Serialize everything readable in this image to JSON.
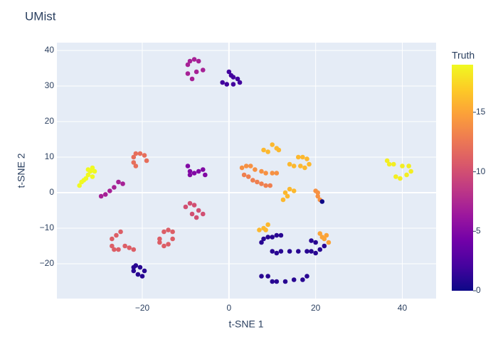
{
  "chart_data": {
    "type": "scatter",
    "title": "UMist",
    "x_label": "t-SNE 1",
    "y_label": "t-SNE 2",
    "colorbar_title": "Truth",
    "colorscale": [
      "#0d0887",
      "#46039f",
      "#7201a8",
      "#9c179e",
      "#bd3786",
      "#d8576b",
      "#ed7953",
      "#fb9f3a",
      "#fdca26",
      "#f0f921"
    ],
    "clim": [
      0,
      19
    ],
    "cticks": [
      0,
      5,
      10,
      15
    ],
    "xlim": [
      -39.7,
      47.8
    ],
    "ylim": [
      -29.8,
      42.2
    ],
    "xticks": [
      {
        "value": -20,
        "label": "−20"
      },
      0,
      20,
      40
    ],
    "yticks": [
      {
        "value": -20,
        "label": "−20"
      },
      {
        "value": -10,
        "label": "−10"
      },
      0,
      10,
      20,
      30,
      40
    ],
    "grid": true,
    "x": [
      -34.5,
      -34,
      -33.5,
      -33,
      -32.5,
      -32,
      -31.5,
      -31,
      -32.5,
      -31.5,
      -29.5,
      -28.5,
      -27.5,
      -26.5,
      -25.5,
      -24.5,
      -22,
      -21.5,
      -20.5,
      -19.5,
      -19,
      -22,
      -21.5,
      -27,
      -26,
      -25,
      -27,
      -26.5,
      -25.5,
      -24,
      -23,
      -22,
      -22,
      -21,
      -20,
      -19.5,
      -20.5,
      -21.5,
      -22,
      -16,
      -15,
      -14,
      -13,
      -13,
      -14,
      -15,
      -16,
      -10,
      -9,
      -8,
      -7,
      -6,
      -7.5,
      -8.5,
      -9.5,
      -9,
      -8,
      -7,
      -6,
      -5.5,
      -9,
      -9.5,
      -9,
      -8,
      -7,
      -6,
      -9.5,
      -8.5,
      -7.5,
      0,
      0.5,
      1,
      2,
      2.5,
      -1.5,
      -0.5,
      1,
      3,
      4,
      5,
      6,
      7.5,
      8.5,
      10,
      11,
      3.5,
      4.5,
      5.5,
      6.5,
      7.5,
      8.5,
      9.5,
      8,
      9,
      10,
      11,
      11.5,
      14,
      15,
      16,
      17,
      18,
      18.5,
      17.5,
      16.5,
      12.5,
      13,
      14,
      15,
      13.5,
      20,
      20.5,
      21,
      20.5,
      21,
      21.5,
      22,
      23,
      22.5,
      7,
      8,
      9,
      8.5,
      7.5,
      8,
      9,
      10,
      11,
      12,
      10,
      11,
      12,
      14,
      16,
      18,
      19,
      20,
      21,
      22,
      20,
      19,
      7.5,
      9,
      10,
      11,
      13,
      15,
      17,
      18,
      36.5,
      38,
      40,
      41.5,
      42,
      41,
      39.5,
      38.5,
      37,
      21.5
    ],
    "values": [
      2,
      3,
      3.5,
      4,
      5,
      6,
      7,
      6,
      6.5,
      4.5,
      -1,
      -0.5,
      0.5,
      1.5,
      3,
      2.5,
      10,
      11,
      11,
      10.5,
      9,
      8.5,
      7.5,
      -13,
      -12,
      -11,
      -15,
      -16,
      -16,
      -15,
      -15.5,
      -16,
      -22,
      -23,
      -23.5,
      -22,
      -21,
      -20.5,
      -21,
      -13,
      -11,
      -10.5,
      -11,
      -13,
      -14.5,
      -15,
      -14,
      -4,
      -3,
      -3.5,
      -5,
      -6,
      -7,
      -6,
      7.5,
      6,
      5.5,
      6,
      6.5,
      5,
      5,
      36,
      37,
      37.5,
      37,
      34.5,
      33.5,
      32,
      34,
      34,
      33,
      32.5,
      32,
      31,
      31,
      30.5,
      30.5,
      7,
      7.5,
      7.5,
      6.5,
      6,
      5.5,
      5.5,
      5.5,
      5,
      4.5,
      3.5,
      3,
      2.5,
      2,
      2,
      12,
      11.5,
      13.5,
      12.5,
      12,
      8,
      7.5,
      10,
      10,
      9.5,
      8,
      7,
      7.5,
      -2,
      0,
      1,
      0.5,
      -1,
      0.5,
      -1,
      -2,
      0,
      -11.5,
      -12.5,
      -13,
      -14,
      -12,
      -10.5,
      -10,
      -9,
      -10.5,
      -14,
      -13,
      -12.5,
      -12.5,
      -12,
      -12,
      -16.5,
      -17,
      -16.5,
      -16.5,
      -16.5,
      -16.5,
      -16.5,
      -17,
      -16,
      -15,
      -14,
      -13.5,
      -23.5,
      -23.5,
      -25,
      -25,
      -25,
      -24.5,
      -24.5,
      -23.5,
      9,
      8,
      7.5,
      7.5,
      6,
      5,
      4,
      4.5,
      8,
      -2.5
    ],
    "color_values": [
      19,
      19,
      19,
      19,
      19,
      19,
      19,
      19,
      19,
      19,
      7,
      7,
      7,
      7,
      7,
      7,
      12,
      12,
      12,
      12,
      12,
      12,
      12,
      11,
      11,
      11,
      11,
      11,
      11,
      11,
      11,
      11,
      1,
      1,
      1,
      1,
      1,
      1,
      1,
      11,
      11,
      11,
      11,
      11,
      11,
      11,
      11,
      10,
      10,
      10,
      10,
      10,
      10,
      10,
      5,
      5,
      5,
      5,
      5,
      5,
      5,
      7,
      7,
      7,
      7,
      7,
      7,
      7,
      7,
      2,
      2,
      2,
      2,
      2,
      2,
      2,
      2,
      14,
      14,
      14,
      14,
      14,
      14,
      14,
      14,
      13,
      13,
      13,
      13,
      13,
      13,
      13,
      16,
      16,
      16,
      16,
      16,
      16,
      16,
      16,
      16,
      16,
      16,
      16,
      16,
      16,
      16,
      16,
      16,
      16,
      14,
      14,
      14,
      14,
      15,
      15,
      15,
      15,
      15,
      16,
      16,
      16,
      16,
      1,
      1,
      1,
      1,
      1,
      1,
      1,
      1,
      1,
      1,
      1,
      1,
      1,
      1,
      1,
      1,
      1,
      1,
      1,
      1,
      1,
      1,
      1,
      1,
      1,
      1,
      18.5,
      18.5,
      18.5,
      18.5,
      18.5,
      18.5,
      18.5,
      18.5,
      18.5,
      0
    ]
  }
}
